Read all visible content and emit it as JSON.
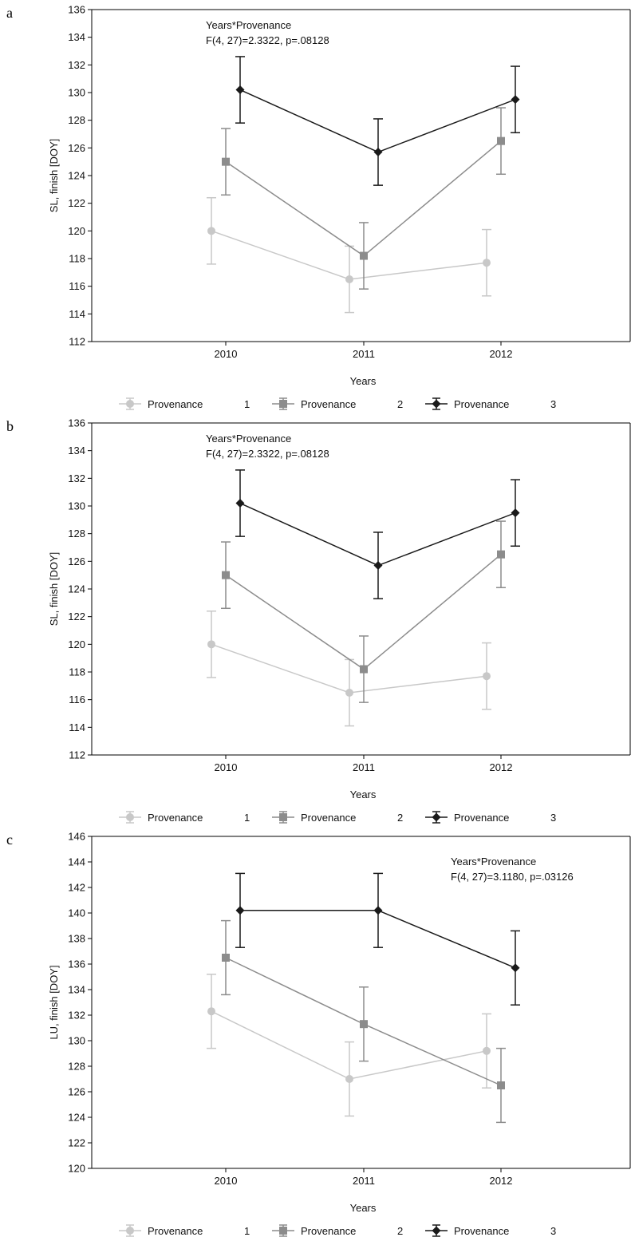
{
  "chart_data": [
    {
      "type": "line",
      "panel_label": "a",
      "xlabel": "Years",
      "ylabel": "SL, finish [DOY]",
      "categories": [
        "2010",
        "2011",
        "2012"
      ],
      "ylim": [
        112,
        136
      ],
      "yticks": [
        112,
        114,
        116,
        118,
        120,
        122,
        124,
        126,
        128,
        130,
        132,
        134,
        136
      ],
      "annotation": {
        "lines": [
          "Years*Provenance",
          "F(4, 27)=2.3322, p=.08128"
        ],
        "position": "top-left"
      },
      "legend_position": "bottom",
      "series": [
        {
          "name": "Provenance",
          "number": "1",
          "marker": "circle",
          "color": "#c8c8c8",
          "values": [
            120.0,
            116.5,
            117.7
          ],
          "err_low": [
            117.6,
            114.1,
            115.3
          ],
          "err_high": [
            122.4,
            118.9,
            120.1
          ]
        },
        {
          "name": "Provenance",
          "number": "2",
          "marker": "square",
          "color": "#8c8c8c",
          "values": [
            125.0,
            118.2,
            126.5
          ],
          "err_low": [
            122.6,
            115.8,
            124.1
          ],
          "err_high": [
            127.4,
            120.6,
            128.9
          ]
        },
        {
          "name": "Provenance",
          "number": "3",
          "marker": "diamond",
          "color": "#1a1a1a",
          "values": [
            130.2,
            125.7,
            129.5
          ],
          "err_low": [
            127.8,
            123.3,
            127.1
          ],
          "err_high": [
            132.6,
            128.1,
            131.9
          ]
        }
      ]
    },
    {
      "type": "line",
      "panel_label": "b",
      "xlabel": "Years",
      "ylabel": "SL, finish [DOY]",
      "categories": [
        "2010",
        "2011",
        "2012"
      ],
      "ylim": [
        112,
        136
      ],
      "yticks": [
        112,
        114,
        116,
        118,
        120,
        122,
        124,
        126,
        128,
        130,
        132,
        134,
        136
      ],
      "annotation": {
        "lines": [
          "Years*Provenance",
          "F(4, 27)=2.3322, p=.08128"
        ],
        "position": "top-left"
      },
      "legend_position": "bottom",
      "series": [
        {
          "name": "Provenance",
          "number": "1",
          "marker": "circle",
          "color": "#c8c8c8",
          "values": [
            120.0,
            116.5,
            117.7
          ],
          "err_low": [
            117.6,
            114.1,
            115.3
          ],
          "err_high": [
            122.4,
            118.9,
            120.1
          ]
        },
        {
          "name": "Provenance",
          "number": "2",
          "marker": "square",
          "color": "#8c8c8c",
          "values": [
            125.0,
            118.2,
            126.5
          ],
          "err_low": [
            122.6,
            115.8,
            124.1
          ],
          "err_high": [
            127.4,
            120.6,
            128.9
          ]
        },
        {
          "name": "Provenance",
          "number": "3",
          "marker": "diamond",
          "color": "#1a1a1a",
          "values": [
            130.2,
            125.7,
            129.5
          ],
          "err_low": [
            127.8,
            123.3,
            127.1
          ],
          "err_high": [
            132.6,
            128.1,
            131.9
          ]
        }
      ]
    },
    {
      "type": "line",
      "panel_label": "c",
      "xlabel": "Years",
      "ylabel": "LU, finish [DOY]",
      "categories": [
        "2010",
        "2011",
        "2012"
      ],
      "ylim": [
        120,
        146
      ],
      "yticks": [
        120,
        122,
        124,
        126,
        128,
        130,
        132,
        134,
        136,
        138,
        140,
        142,
        144,
        146
      ],
      "annotation": {
        "lines": [
          "Years*Provenance",
          "F(4, 27)=3.1180, p=.03126"
        ],
        "position": "top-right"
      },
      "legend_position": "bottom",
      "series": [
        {
          "name": "Provenance",
          "number": "1",
          "marker": "circle",
          "color": "#c8c8c8",
          "values": [
            132.3,
            127.0,
            129.2
          ],
          "err_low": [
            129.4,
            124.1,
            126.3
          ],
          "err_high": [
            135.2,
            129.9,
            132.1
          ]
        },
        {
          "name": "Provenance",
          "number": "2",
          "marker": "square",
          "color": "#8c8c8c",
          "values": [
            136.5,
            131.3,
            126.5
          ],
          "err_low": [
            133.6,
            128.4,
            123.6
          ],
          "err_high": [
            139.4,
            134.2,
            129.4
          ]
        },
        {
          "name": "Provenance",
          "number": "3",
          "marker": "diamond",
          "color": "#1a1a1a",
          "values": [
            140.2,
            140.2,
            135.7
          ],
          "err_low": [
            137.3,
            137.3,
            132.8
          ],
          "err_high": [
            143.1,
            143.1,
            138.6
          ]
        }
      ]
    }
  ]
}
